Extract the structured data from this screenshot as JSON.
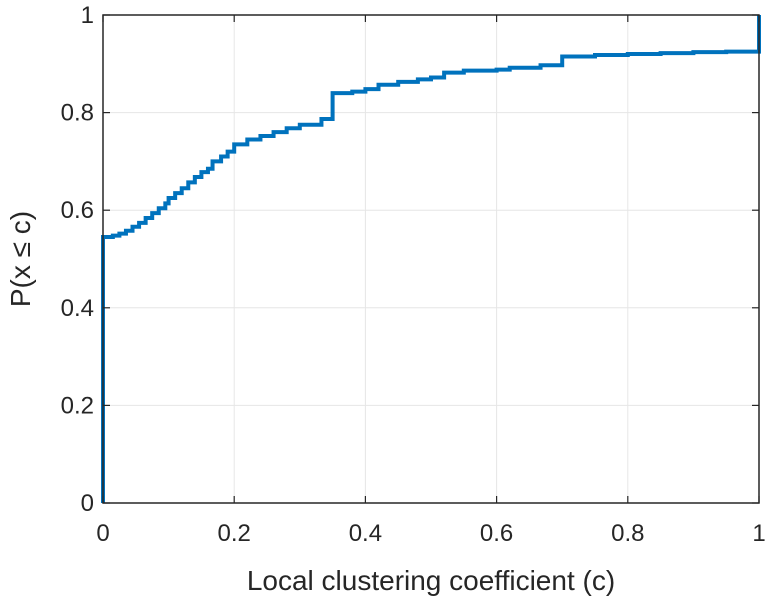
{
  "chart_data": {
    "type": "line",
    "title": "",
    "xlabel": "Local clustering coefficient (c)",
    "ylabel": "P(x ≤ c)",
    "xlim": [
      0,
      1
    ],
    "ylim": [
      0,
      1
    ],
    "xticks": [
      0,
      0.2,
      0.4,
      0.6,
      0.8,
      1
    ],
    "yticks": [
      0,
      0.2,
      0.4,
      0.6,
      0.8,
      1
    ],
    "xtick_labels": [
      "0",
      "0.2",
      "0.4",
      "0.6",
      "0.8",
      "1"
    ],
    "ytick_labels": [
      "0",
      "0.2",
      "0.4",
      "0.6",
      "0.8",
      "1"
    ],
    "grid": true,
    "series": [
      {
        "color": "#0072BD",
        "step": "post",
        "x": [
          0,
          0,
          0.015,
          0.025,
          0.035,
          0.045,
          0.055,
          0.065,
          0.075,
          0.085,
          0.095,
          0.1,
          0.11,
          0.12,
          0.13,
          0.14,
          0.15,
          0.16,
          0.167,
          0.18,
          0.19,
          0.2,
          0.22,
          0.24,
          0.26,
          0.28,
          0.3,
          0.333,
          0.35,
          0.38,
          0.4,
          0.42,
          0.45,
          0.48,
          0.5,
          0.52,
          0.55,
          0.6,
          0.62,
          0.667,
          0.7,
          0.75,
          0.8,
          0.85,
          0.9,
          0.95,
          1.0,
          1.0
        ],
        "y": [
          0,
          0.545,
          0.548,
          0.552,
          0.558,
          0.566,
          0.574,
          0.584,
          0.594,
          0.604,
          0.614,
          0.625,
          0.635,
          0.645,
          0.657,
          0.668,
          0.678,
          0.685,
          0.7,
          0.71,
          0.72,
          0.735,
          0.745,
          0.752,
          0.76,
          0.768,
          0.775,
          0.787,
          0.84,
          0.843,
          0.848,
          0.857,
          0.863,
          0.868,
          0.872,
          0.882,
          0.886,
          0.888,
          0.892,
          0.897,
          0.915,
          0.918,
          0.92,
          0.922,
          0.924,
          0.925,
          0.926,
          1.0
        ]
      }
    ]
  }
}
